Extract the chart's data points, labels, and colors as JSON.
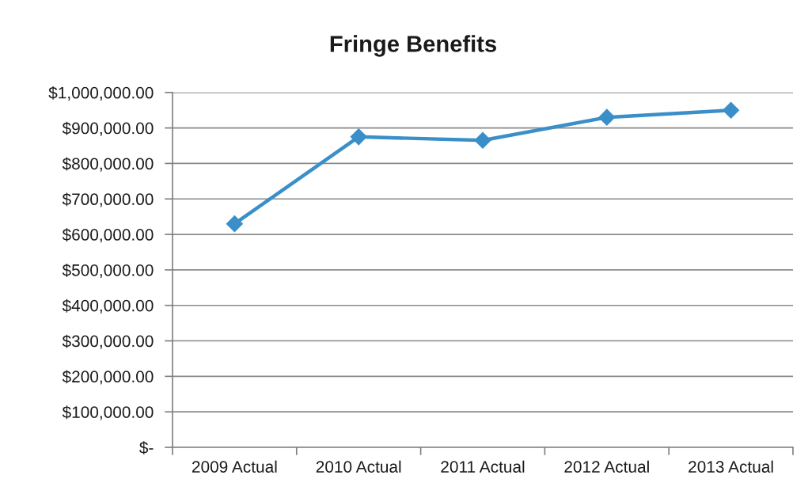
{
  "chart_data": {
    "type": "line",
    "title": "Fringe Benefits",
    "categories": [
      "2009 Actual",
      "2010 Actual",
      "2011 Actual",
      "2012 Actual",
      "2013 Actual"
    ],
    "series": [
      {
        "color": "#3b8fc9",
        "values": [
          630000,
          875000,
          865000,
          930000,
          950000
        ]
      }
    ],
    "ylim": [
      0,
      1000000
    ],
    "yticks": [
      {
        "value": 0,
        "label": "$-"
      },
      {
        "value": 100000,
        "label": "$100,000.00"
      },
      {
        "value": 200000,
        "label": "$200,000.00"
      },
      {
        "value": 300000,
        "label": "$300,000.00"
      },
      {
        "value": 400000,
        "label": "$400,000.00"
      },
      {
        "value": 500000,
        "label": "$500,000.00"
      },
      {
        "value": 600000,
        "label": "$600,000.00"
      },
      {
        "value": 700000,
        "label": "$700,000.00"
      },
      {
        "value": 800000,
        "label": "$800,000.00"
      },
      {
        "value": 900000,
        "label": "$900,000.00"
      },
      {
        "value": 1000000,
        "label": "$1,000,000.00"
      }
    ],
    "grid": "y",
    "marker": "diamond",
    "line_style": "solid"
  }
}
